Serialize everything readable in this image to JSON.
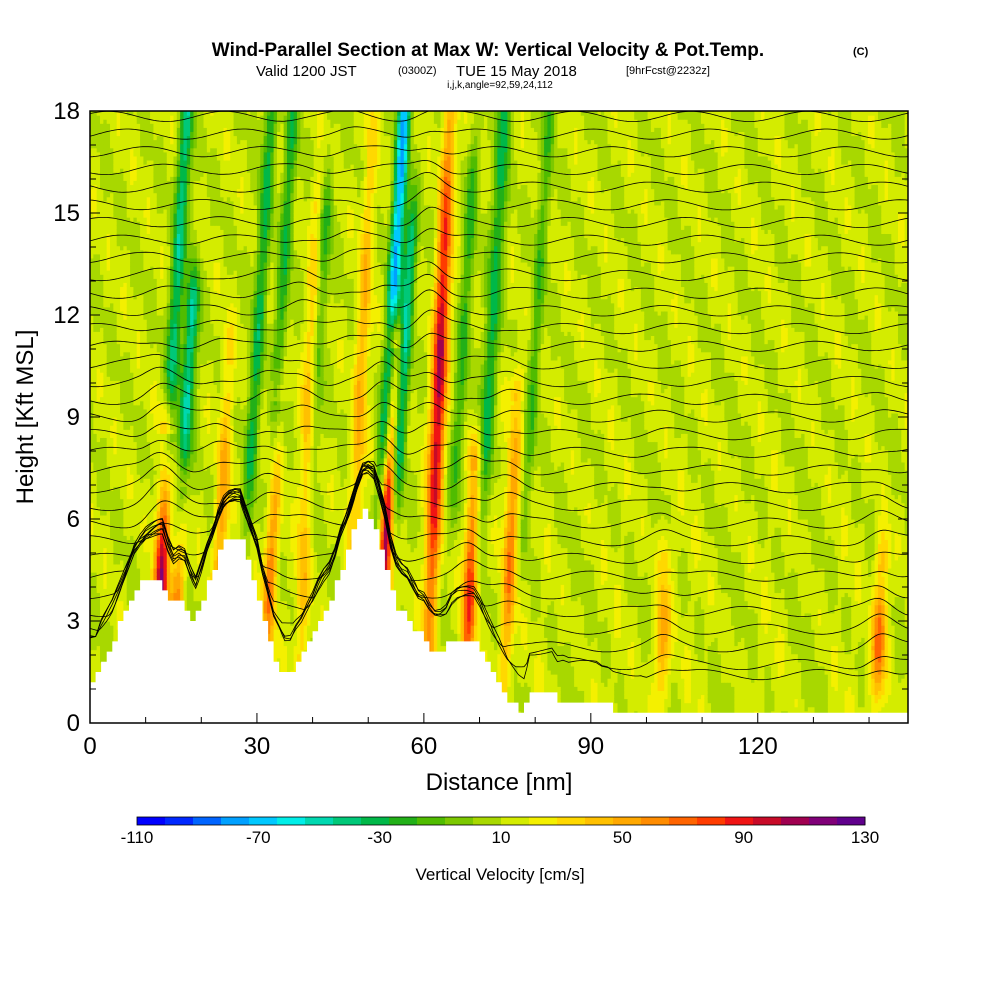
{
  "chart_data": {
    "type": "heatmap",
    "title": "Wind-Parallel Section at Max W: Vertical Velocity & Pot.Temp.",
    "title_mark": "(C)",
    "subtitle_parts": {
      "valid": "Valid 1200 JST",
      "utc": "(0300Z)",
      "date": "TUE 15 May 2018",
      "fcst": "[9hrFcst@2232z]"
    },
    "subtitle2": "i,j,k,angle=92,59,24,112",
    "xlabel": "Distance [nm]",
    "ylabel": "Height [Kft MSL]",
    "xlim": [
      0,
      147
    ],
    "ylim": [
      0,
      18
    ],
    "x_ticks": [
      0,
      30,
      60,
      90,
      120
    ],
    "x_tick_labels": [
      "0",
      "30",
      "60",
      "90",
      "120"
    ],
    "y_ticks": [
      0,
      3,
      6,
      9,
      12,
      15,
      18
    ],
    "y_tick_labels": [
      "0",
      "3",
      "6",
      "9",
      "12",
      "15",
      "18"
    ],
    "colorbar": {
      "label": "Vertical Velocity [cm/s]",
      "min": -110,
      "max": 130,
      "tick_values": [
        -110,
        -70,
        -30,
        10,
        50,
        90,
        130
      ],
      "tick_labels": [
        "-110",
        "-70",
        "-30",
        "10",
        "50",
        "90",
        "130"
      ],
      "colors": [
        "#0000ff",
        "#0028ff",
        "#0064ff",
        "#00a0ff",
        "#00c8ff",
        "#00eee8",
        "#00d8b0",
        "#00c878",
        "#00b848",
        "#22b018",
        "#50bc00",
        "#7cc800",
        "#a8d800",
        "#d4ec00",
        "#f4f000",
        "#ffd800",
        "#ffc000",
        "#ffa800",
        "#ff8c00",
        "#ff6400",
        "#ff3c00",
        "#f01414",
        "#c80a28",
        "#a00050",
        "#800078",
        "#60008c"
      ]
    },
    "terrain": [
      [
        0,
        1.3
      ],
      [
        1,
        1.3
      ],
      [
        2,
        1.7
      ],
      [
        3,
        2.0
      ],
      [
        4,
        2.3
      ],
      [
        5,
        2.7
      ],
      [
        6,
        3.1
      ],
      [
        7,
        3.5
      ],
      [
        8,
        3.9
      ],
      [
        9,
        4.1
      ],
      [
        10,
        4.2
      ],
      [
        11,
        4.2
      ],
      [
        12,
        4.2
      ],
      [
        13,
        4.2
      ],
      [
        14,
        3.7
      ],
      [
        15,
        3.4
      ],
      [
        16,
        3.6
      ],
      [
        17,
        3.6
      ],
      [
        18,
        3.2
      ],
      [
        19,
        2.9
      ],
      [
        20,
        3.4
      ],
      [
        21,
        3.9
      ],
      [
        22,
        4.3
      ],
      [
        23,
        4.8
      ],
      [
        24,
        5.2
      ],
      [
        25,
        5.4
      ],
      [
        26,
        5.5
      ],
      [
        27,
        5.5
      ],
      [
        28,
        5.0
      ],
      [
        29,
        4.5
      ],
      [
        30,
        4.0
      ],
      [
        31,
        3.2
      ],
      [
        32,
        2.6
      ],
      [
        33,
        2.0
      ],
      [
        34,
        1.7
      ],
      [
        35,
        1.4
      ],
      [
        36,
        1.4
      ],
      [
        37,
        1.7
      ],
      [
        38,
        1.9
      ],
      [
        39,
        2.2
      ],
      [
        40,
        2.5
      ],
      [
        41,
        2.9
      ],
      [
        42,
        3.2
      ],
      [
        43,
        3.4
      ],
      [
        44,
        3.8
      ],
      [
        45,
        4.4
      ],
      [
        46,
        4.8
      ],
      [
        47,
        5.3
      ],
      [
        48,
        5.8
      ],
      [
        49,
        6.2
      ],
      [
        50,
        6.2
      ],
      [
        51,
        6.0
      ],
      [
        52,
        5.4
      ],
      [
        53,
        4.8
      ],
      [
        54,
        4.0
      ],
      [
        55,
        3.5
      ],
      [
        56,
        3.3
      ],
      [
        57,
        3.2
      ],
      [
        58,
        2.9
      ],
      [
        59,
        2.6
      ],
      [
        60,
        2.5
      ],
      [
        61,
        2.2
      ],
      [
        62,
        2.0
      ],
      [
        63,
        2.0
      ],
      [
        64,
        2.1
      ],
      [
        65,
        2.4
      ],
      [
        66,
        2.5
      ],
      [
        67,
        2.5
      ],
      [
        68,
        2.5
      ],
      [
        69,
        2.5
      ],
      [
        70,
        2.3
      ],
      [
        71,
        2.0
      ],
      [
        72,
        1.7
      ],
      [
        73,
        1.4
      ],
      [
        74,
        1.1
      ],
      [
        75,
        0.8
      ],
      [
        76,
        0.6
      ],
      [
        77,
        0.4
      ],
      [
        78,
        0.3
      ],
      [
        79,
        1.0
      ],
      [
        80,
        1.0
      ],
      [
        81,
        1.0
      ],
      [
        82,
        1.0
      ],
      [
        83,
        1.0
      ],
      [
        84,
        0.7
      ],
      [
        85,
        0.7
      ],
      [
        86,
        0.6
      ],
      [
        87,
        0.6
      ],
      [
        88,
        0.6
      ],
      [
        89,
        0.6
      ],
      [
        90,
        0.6
      ],
      [
        91,
        0.6
      ],
      [
        92,
        0.5
      ],
      [
        93,
        0.5
      ],
      [
        94,
        0.4
      ],
      [
        95,
        0.4
      ],
      [
        96,
        0.4
      ],
      [
        97,
        0.4
      ],
      [
        98,
        0.4
      ],
      [
        99,
        0.4
      ],
      [
        100,
        0.3
      ],
      [
        147,
        0.3
      ]
    ],
    "updrafts": [
      {
        "x": 12.5,
        "top": 8.5,
        "peak": 100
      },
      {
        "x": 15.5,
        "top": 7.0,
        "peak": 45
      },
      {
        "x": 23,
        "top": 10.5,
        "peak": 40
      },
      {
        "x": 32,
        "top": 9.5,
        "peak": 55
      },
      {
        "x": 38,
        "top": 15,
        "peak": 45
      },
      {
        "x": 47,
        "top": 18,
        "peak": 35
      },
      {
        "x": 52.5,
        "top": 11,
        "peak": 110
      },
      {
        "x": 61,
        "top": 18,
        "peak": 95
      },
      {
        "x": 68,
        "top": 7.5,
        "peak": 70
      },
      {
        "x": 75,
        "top": 9.5,
        "peak": 50
      },
      {
        "x": 103,
        "top": 4.5,
        "peak": 45
      },
      {
        "x": 142,
        "top": 4.5,
        "peak": 60
      }
    ],
    "downdrafts": [
      {
        "x": 14,
        "top": 18,
        "peak": -55
      },
      {
        "x": 17,
        "top": 12,
        "peak": -60
      },
      {
        "x": 29,
        "top": 18,
        "peak": -40
      },
      {
        "x": 33,
        "top": 18,
        "peak": -35
      },
      {
        "x": 40,
        "top": 15,
        "peak": -35
      },
      {
        "x": 53,
        "top": 18,
        "peak": -85
      },
      {
        "x": 55.5,
        "top": 14,
        "peak": -55
      },
      {
        "x": 66,
        "top": 16,
        "peak": -30
      },
      {
        "x": 71,
        "top": 18,
        "peak": -45
      },
      {
        "x": 79,
        "top": 18,
        "peak": -25
      }
    ]
  }
}
